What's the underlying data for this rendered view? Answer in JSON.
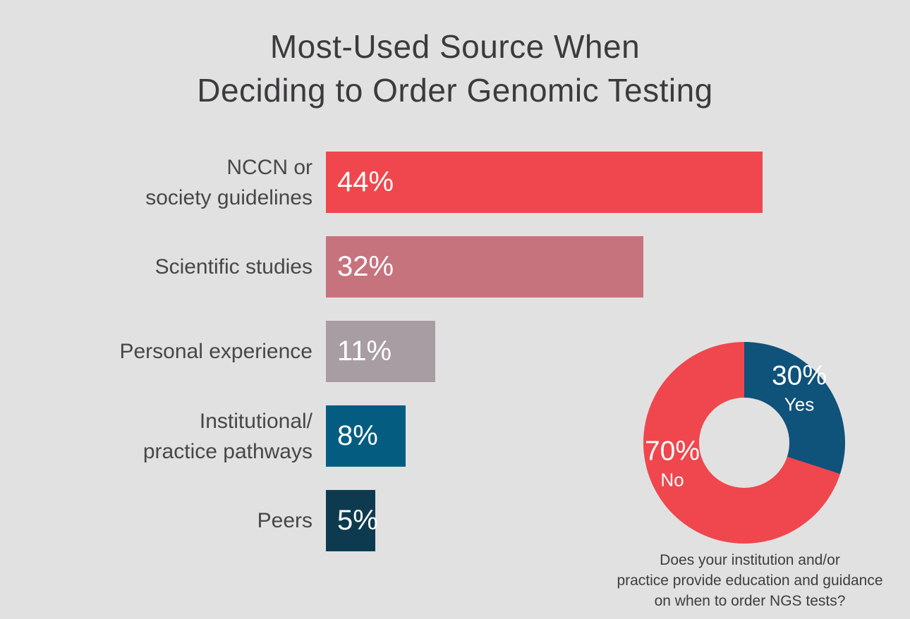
{
  "title": {
    "lines": [
      "Most-Used Source When",
      "Deciding to Order Genomic Testing"
    ]
  },
  "colors": {
    "background": "#e2e1e2",
    "title_text": "#3b3b3b",
    "category_label_text": "#474747",
    "value_label_text": "#ffffff",
    "caption_text": "#3d3d3d"
  },
  "chart_data": [
    {
      "type": "bar",
      "orientation": "horizontal",
      "title": "Most-Used Source When Deciding to Order Genomic Testing",
      "categories": [
        "NCCN or society guidelines",
        "Scientific studies",
        "Personal experience",
        "Institutional/practice pathways",
        "Peers"
      ],
      "category_lines": [
        [
          "NCCN or",
          "society guidelines"
        ],
        [
          "Scientific studies"
        ],
        [
          "Personal experience"
        ],
        [
          "Institutional/",
          "practice pathways"
        ],
        [
          "Peers"
        ]
      ],
      "values": [
        44,
        32,
        11,
        8,
        5
      ],
      "value_labels": [
        "44%",
        "32%",
        "11%",
        "8%",
        "5%"
      ],
      "bar_colors": [
        "#ef474d",
        "#c6737e",
        "#a89da3",
        "#045d81",
        "#0e3a4f"
      ],
      "xlabel": "",
      "ylabel": "",
      "xlim": [
        0,
        44
      ],
      "grid": false,
      "value_label_position": "inside-left"
    },
    {
      "type": "pie",
      "subtype": "donut",
      "slices": [
        {
          "label": "Yes",
          "value": 30,
          "display": "30%",
          "color": "#0f527a"
        },
        {
          "label": "No",
          "value": 70,
          "display": "70%",
          "color": "#ef474d"
        }
      ],
      "start_angle_deg": 0,
      "direction": "clockwise",
      "caption": "Does your institution and/or practice provide education and guidance on when to order NGS tests?",
      "caption_lines": [
        "Does your institution and/or",
        "practice provide education and guidance",
        "on when to order NGS tests?"
      ]
    }
  ]
}
